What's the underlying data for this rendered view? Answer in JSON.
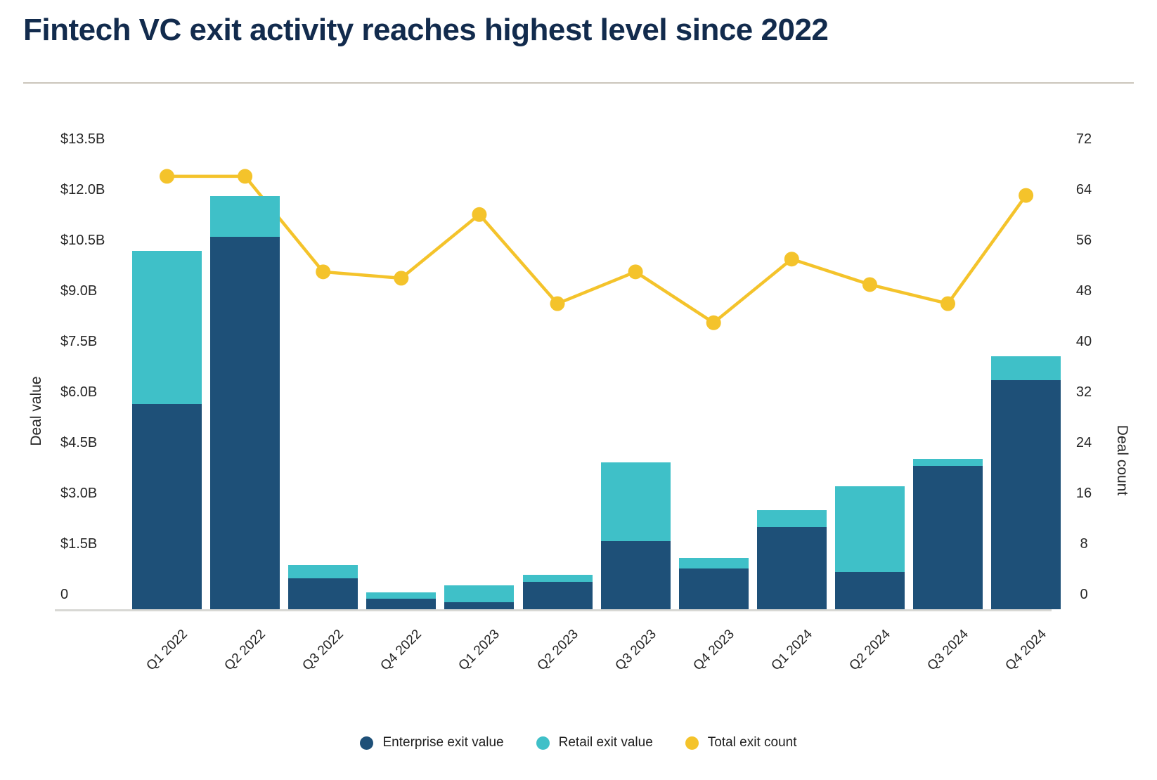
{
  "title": "Fintech VC exit activity reaches highest level since 2022",
  "colors": {
    "enterprise_bar": "#1e5078",
    "retail_bar": "#3fc0c8",
    "count_line": "#f4c32b",
    "title_text": "#122b4d",
    "axis_text": "#262626",
    "baseline": "#d8d8d4",
    "divider": "#cbc5bb"
  },
  "chart_data": {
    "type": "combo (stacked bar + line)",
    "title": "Fintech VC exit activity reaches highest level since 2022",
    "categories": [
      "Q1 2022",
      "Q2 2022",
      "Q3 2022",
      "Q4 2022",
      "Q1 2023",
      "Q2 2023",
      "Q3 2023",
      "Q4 2023",
      "Q1 2024",
      "Q2 2024",
      "Q3 2024",
      "Q4 2024"
    ],
    "series": [
      {
        "name": "Enterprise exit value",
        "type": "bar-stacked",
        "axis": "left",
        "unit": "$B",
        "values": [
          6.0,
          10.9,
          0.9,
          0.3,
          0.2,
          0.8,
          2.0,
          1.2,
          2.4,
          1.1,
          4.2,
          6.7
        ]
      },
      {
        "name": "Retail exit value",
        "type": "bar-stacked",
        "axis": "left",
        "unit": "$B",
        "values": [
          4.5,
          1.2,
          0.4,
          0.2,
          0.5,
          0.2,
          2.3,
          0.3,
          0.5,
          2.5,
          0.2,
          0.7
        ]
      },
      {
        "name": "Total exit count",
        "type": "line",
        "axis": "right",
        "unit": "count",
        "values": [
          68,
          68,
          53,
          52,
          62,
          48,
          53,
          45,
          55,
          51,
          48,
          65
        ]
      }
    ],
    "left_axis": {
      "title": "Deal value",
      "range": [
        0,
        13.5
      ],
      "tick_labels": [
        "$13.5B",
        "$12.0B",
        "$10.5B",
        "$9.0B",
        "$7.5B",
        "$6.0B",
        "$4.5B",
        "$3.0B",
        "$1.5B",
        "0"
      ],
      "tick_values": [
        13.5,
        12.0,
        10.5,
        9.0,
        7.5,
        6.0,
        4.5,
        3.0,
        1.5,
        0
      ]
    },
    "right_axis": {
      "title": "Deal count",
      "range": [
        0,
        72
      ],
      "tick_labels": [
        "72",
        "64",
        "56",
        "48",
        "40",
        "32",
        "24",
        "16",
        "8",
        "0"
      ],
      "tick_values": [
        72,
        64,
        56,
        48,
        40,
        32,
        24,
        16,
        8,
        0
      ]
    },
    "grid": false,
    "legend_position": "bottom"
  },
  "legend": {
    "items": [
      {
        "label": "Enterprise exit value",
        "color": "#1e5078"
      },
      {
        "label": "Retail exit value",
        "color": "#3fc0c8"
      },
      {
        "label": "Total exit count",
        "color": "#f4c32b"
      }
    ]
  }
}
